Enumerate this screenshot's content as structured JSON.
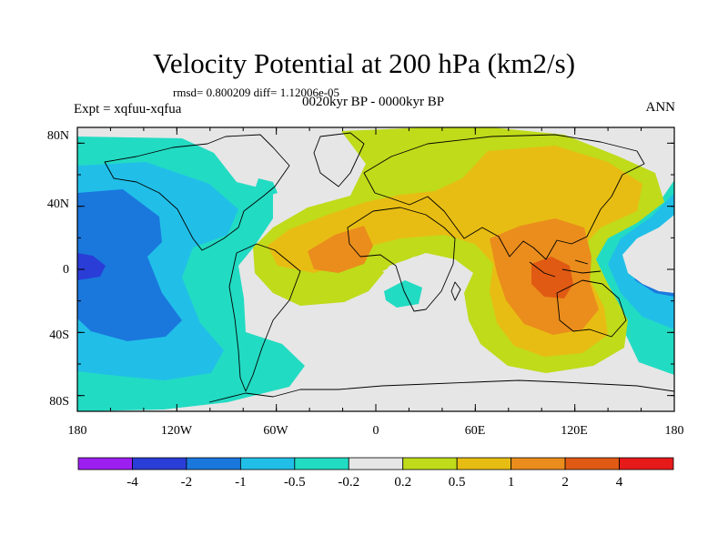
{
  "title": "Velocity Potential at 200 hPa (km2/s)",
  "stats": "rmsd= 0.800209 diff= 1.12006e-05",
  "experiment": "Expt = xqfuu-xqfua",
  "period": "0020kyr BP - 0000kyr BP",
  "season": "ANN",
  "y_ticks": [
    "80N",
    "40N",
    "0",
    "40S",
    "80S"
  ],
  "x_ticks": [
    "180",
    "120W",
    "60W",
    "0",
    "60E",
    "120E",
    "180"
  ],
  "colorbar": {
    "colors": [
      "#9c1ff0",
      "#2a3dd6",
      "#1a78dd",
      "#21bfe8",
      "#22dbc3",
      "#e6e6e6",
      "#bfdb1a",
      "#e8bd13",
      "#ea8d1c",
      "#e05a13",
      "#e71a1a"
    ],
    "labels": [
      "-4",
      "-2",
      "-1",
      "-0.5",
      "-0.2",
      "0.2",
      "0.5",
      "1",
      "2",
      "4"
    ]
  },
  "field_colors": {
    "background": "#e6e6e6",
    "teal": "#22dbc3",
    "cyan": "#21bfe8",
    "blue": "#1a78dd",
    "darkblue": "#2a3dd6",
    "green": "#bfdb1a",
    "yellow": "#e8bd13",
    "orange": "#ea8d1c",
    "redorange": "#e05a13"
  }
}
